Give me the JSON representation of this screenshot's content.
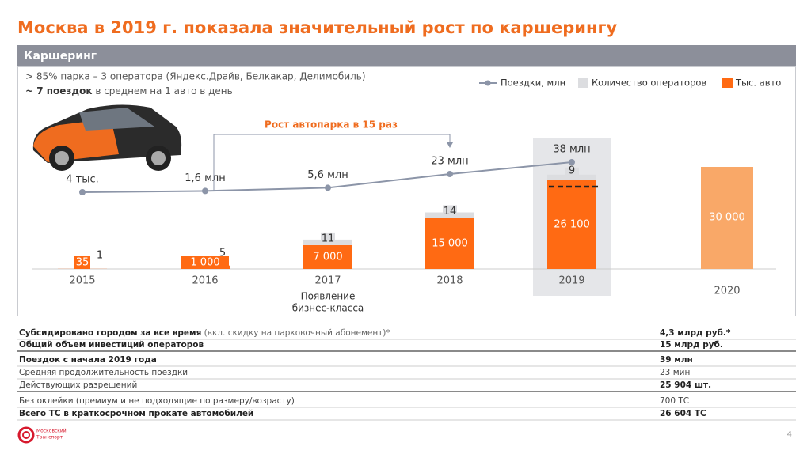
{
  "header": {
    "title": "Москва в 2019 г. показала значительный рост по каршерингу",
    "section": "Каршеринг",
    "bullet_1": "> 85% парка – 3 оператора (Яндекс.Драйв, Белкакар, Делимобиль)",
    "bullet_2_bold": "~ 7 поездок",
    "bullet_2_rest": " в среднем на 1 авто в день"
  },
  "chart_data": {
    "type": "bar",
    "categories": [
      "2015",
      "2016",
      "2017",
      "2018",
      "2019",
      "2020"
    ],
    "legend": [
      "Поездки, млн",
      "Количество операторов",
      "Тыс. авто"
    ],
    "ylim": [
      0,
      30000
    ],
    "y2lim": [
      0,
      40
    ],
    "series": [
      {
        "name": "Тыс. авто",
        "type": "bar",
        "color": "#ff6a13",
        "colors": [
          "#ff6a13",
          "#ff6a13",
          "#ff6a13",
          "#ff6a13",
          "#ff6a13",
          "#f9a868"
        ],
        "values": [
          35,
          1000,
          7000,
          15000,
          26100,
          30000
        ],
        "value_labels": [
          "35",
          "1 000",
          "7 000",
          "15 000",
          "26 100",
          "30 000"
        ]
      },
      {
        "name": "Количество операторов",
        "type": "cap",
        "color": "#dcdde0",
        "values": [
          1,
          5,
          11,
          14,
          9,
          null
        ]
      },
      {
        "name": "Поездки, млн",
        "type": "line",
        "axis": "y2",
        "color": "#8c95a8",
        "values": [
          0.004,
          1.6,
          5.6,
          23,
          38,
          null
        ],
        "value_labels": [
          "4 тыс.",
          "1,6 млн",
          "5,6 млн",
          "23 млн",
          "38 млн",
          null
        ]
      }
    ],
    "annotation": "Рост автопарка в 15 раз",
    "note_2017": [
      "Появление",
      "бизнес-класса"
    ]
  },
  "table": {
    "rows": [
      {
        "label": "Субсидировано городом за все время",
        "note": " (вкл. скидку на парковочный абонемент)*",
        "value": "4,3 млрд руб.*",
        "bold": true
      },
      {
        "label": "Общий объем инвестиций операторов",
        "value": "15 млрд руб.",
        "bold": true
      },
      {
        "label": "Поездок с начала 2019 года",
        "value": "39 млн",
        "bold": true
      },
      {
        "label": "Средняя продолжительность поездки",
        "value": "23 мин",
        "bold": false
      },
      {
        "label": "Действующих разрешений",
        "value": "25 904 шт.",
        "bold": false,
        "value_bold": true
      },
      {
        "label": "Без оклейки (премиум и не подходящие по размеру/возрасту)",
        "value": "700 ТС",
        "bold": false
      },
      {
        "label": "Всего ТС в краткосрочном прокате автомобилей",
        "value": "26 604 ТС",
        "bold": true
      }
    ]
  },
  "footer": {
    "logo_line_1": "Московский",
    "logo_line_2": "Транспорт",
    "page": "4"
  }
}
